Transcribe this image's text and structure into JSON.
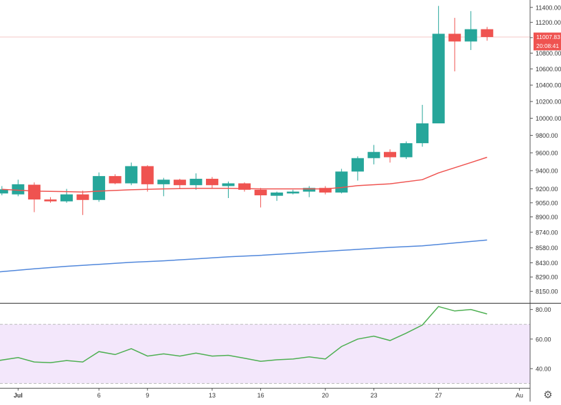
{
  "chart_data": {
    "type": "candlestick",
    "price_axis": {
      "ticks": [
        8150,
        8290,
        8430,
        8580,
        8740,
        8900,
        9050,
        9200,
        9400,
        9600,
        9800,
        10000,
        10200,
        10400,
        10600,
        10800,
        11000,
        11200,
        11400
      ],
      "tick_labels": [
        "8150.00",
        "8290.00",
        "8430.00",
        "8580.00",
        "8740.00",
        "8900.00",
        "9050.00",
        "9200.00",
        "9400.00",
        "9600.00",
        "9800.00",
        "10000.00",
        "10200.00",
        "10400.00",
        "10600.00",
        "10800.00",
        "11000.00",
        "11200.00",
        "11400.00"
      ],
      "scale": "log",
      "range": [
        8040,
        11500
      ]
    },
    "last_price": {
      "value": 11007.83,
      "label": "11007.83",
      "countdown": "20:08:41"
    },
    "time_axis": {
      "tick_days": [
        1,
        6,
        9,
        13,
        16,
        20,
        23,
        27,
        32
      ],
      "tick_labels": [
        "Jul",
        "6",
        "9",
        "13",
        "16",
        "20",
        "23",
        "27",
        "Au"
      ]
    },
    "candles": [
      {
        "day": 0,
        "open": 9150,
        "high": 9230,
        "low": 9130,
        "close": 9195
      },
      {
        "day": 1,
        "open": 9140,
        "high": 9300,
        "low": 9120,
        "close": 9250
      },
      {
        "day": 2,
        "open": 9245,
        "high": 9270,
        "low": 8950,
        "close": 9085
      },
      {
        "day": 3,
        "open": 9085,
        "high": 9110,
        "low": 9050,
        "close": 9065
      },
      {
        "day": 4,
        "open": 9065,
        "high": 9200,
        "low": 9050,
        "close": 9140
      },
      {
        "day": 5,
        "open": 9140,
        "high": 9180,
        "low": 8920,
        "close": 9080
      },
      {
        "day": 6,
        "open": 9080,
        "high": 9380,
        "low": 9060,
        "close": 9340
      },
      {
        "day": 7,
        "open": 9340,
        "high": 9360,
        "low": 9250,
        "close": 9260
      },
      {
        "day": 8,
        "open": 9260,
        "high": 9490,
        "low": 9240,
        "close": 9450
      },
      {
        "day": 9,
        "open": 9450,
        "high": 9460,
        "low": 9170,
        "close": 9250
      },
      {
        "day": 10,
        "open": 9250,
        "high": 9320,
        "low": 9120,
        "close": 9300
      },
      {
        "day": 11,
        "open": 9300,
        "high": 9310,
        "low": 9200,
        "close": 9240
      },
      {
        "day": 12,
        "open": 9240,
        "high": 9370,
        "low": 9190,
        "close": 9310
      },
      {
        "day": 13,
        "open": 9310,
        "high": 9330,
        "low": 9200,
        "close": 9240
      },
      {
        "day": 14,
        "open": 9230,
        "high": 9280,
        "low": 9100,
        "close": 9260
      },
      {
        "day": 15,
        "open": 9260,
        "high": 9270,
        "low": 9170,
        "close": 9190
      },
      {
        "day": 16,
        "open": 9190,
        "high": 9210,
        "low": 9000,
        "close": 9130
      },
      {
        "day": 17,
        "open": 9125,
        "high": 9170,
        "low": 9070,
        "close": 9160
      },
      {
        "day": 18,
        "open": 9150,
        "high": 9190,
        "low": 9140,
        "close": 9170
      },
      {
        "day": 19,
        "open": 9170,
        "high": 9230,
        "low": 9110,
        "close": 9210
      },
      {
        "day": 20,
        "open": 9210,
        "high": 9230,
        "low": 9140,
        "close": 9160
      },
      {
        "day": 21,
        "open": 9160,
        "high": 9420,
        "low": 9150,
        "close": 9390
      },
      {
        "day": 22,
        "open": 9390,
        "high": 9560,
        "low": 9290,
        "close": 9540
      },
      {
        "day": 23,
        "open": 9540,
        "high": 9690,
        "low": 9470,
        "close": 9610
      },
      {
        "day": 24,
        "open": 9610,
        "high": 9640,
        "low": 9490,
        "close": 9550
      },
      {
        "day": 25,
        "open": 9550,
        "high": 9730,
        "low": 9530,
        "close": 9710
      },
      {
        "day": 26,
        "open": 9710,
        "high": 10160,
        "low": 9670,
        "close": 9940
      },
      {
        "day": 27,
        "open": 9940,
        "high": 11420,
        "low": 9940,
        "close": 11050
      },
      {
        "day": 28,
        "open": 11050,
        "high": 11260,
        "low": 10570,
        "close": 10950
      },
      {
        "day": 29,
        "open": 10950,
        "high": 11350,
        "low": 10840,
        "close": 11110
      },
      {
        "day": 30,
        "open": 11110,
        "high": 11140,
        "low": 10960,
        "close": 11008
      }
    ],
    "ma_fast": [
      [
        0,
        9195
      ],
      [
        2,
        9175
      ],
      [
        4,
        9170
      ],
      [
        5,
        9165
      ],
      [
        6,
        9175
      ],
      [
        8,
        9190
      ],
      [
        10,
        9200
      ],
      [
        12,
        9205
      ],
      [
        14,
        9205
      ],
      [
        16,
        9200
      ],
      [
        18,
        9200
      ],
      [
        20,
        9200
      ],
      [
        21,
        9215
      ],
      [
        22,
        9235
      ],
      [
        24,
        9255
      ],
      [
        26,
        9300
      ],
      [
        27,
        9375
      ],
      [
        29,
        9490
      ],
      [
        30,
        9550
      ]
    ],
    "ma_slow": [
      [
        -0.2,
        8340
      ],
      [
        2,
        8370
      ],
      [
        4,
        8395
      ],
      [
        6,
        8415
      ],
      [
        8,
        8435
      ],
      [
        10,
        8450
      ],
      [
        12,
        8470
      ],
      [
        14,
        8490
      ],
      [
        16,
        8505
      ],
      [
        18,
        8525
      ],
      [
        20,
        8545
      ],
      [
        22,
        8565
      ],
      [
        24,
        8585
      ],
      [
        26,
        8600
      ],
      [
        28,
        8630
      ],
      [
        30,
        8660
      ]
    ],
    "rsi": {
      "ticks": [
        40,
        60,
        80
      ],
      "tick_labels": [
        "40.00",
        "60.00",
        "80.00"
      ],
      "band": [
        30,
        70
      ],
      "range": [
        27,
        84
      ],
      "values": [
        [
          -0.2,
          45.5
        ],
        [
          1,
          47.5
        ],
        [
          2,
          44.5
        ],
        [
          3,
          44
        ],
        [
          4,
          45.5
        ],
        [
          5,
          44.5
        ],
        [
          6,
          51.5
        ],
        [
          7,
          49.5
        ],
        [
          8,
          53.5
        ],
        [
          9,
          48.5
        ],
        [
          10,
          50
        ],
        [
          11,
          48.5
        ],
        [
          12,
          50.5
        ],
        [
          13,
          48.5
        ],
        [
          14,
          49
        ],
        [
          15,
          47
        ],
        [
          16,
          45
        ],
        [
          17,
          46
        ],
        [
          18,
          46.5
        ],
        [
          19,
          48
        ],
        [
          20,
          46.5
        ],
        [
          21,
          55
        ],
        [
          22,
          60
        ],
        [
          23,
          62
        ],
        [
          24,
          59
        ],
        [
          25,
          64
        ],
        [
          26,
          69.5
        ],
        [
          27,
          82
        ],
        [
          28,
          79
        ],
        [
          29,
          80
        ],
        [
          30,
          77
        ]
      ]
    },
    "colors": {
      "up": "#26a69a",
      "down": "#ef5350",
      "ma_fast": "#ef5350",
      "ma_slow": "#4f86db",
      "rsi_line": "#4caf50",
      "rsi_band": "#f3e7fb",
      "price_line": "#f6c7c5",
      "axis_text": "#333333",
      "label_bg": "#ef5350"
    }
  },
  "settings_icon": "gear-icon"
}
